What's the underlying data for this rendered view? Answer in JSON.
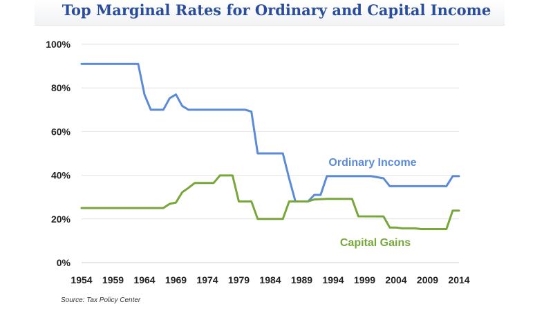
{
  "chart_data": {
    "type": "line",
    "title": "Top Marginal Rates for Ordinary and Capital Income",
    "xlabel": "",
    "ylabel": "",
    "xlim": [
      1954,
      2014
    ],
    "ylim": [
      0,
      100
    ],
    "x_ticks": [
      1954,
      1959,
      1964,
      1969,
      1974,
      1979,
      1984,
      1989,
      1994,
      1999,
      2004,
      2009,
      2014
    ],
    "y_ticks": [
      0,
      20,
      40,
      60,
      80,
      100
    ],
    "y_tick_labels": [
      "0%",
      "20%",
      "40%",
      "60%",
      "80%",
      "100%"
    ],
    "grid": true,
    "series": [
      {
        "name": "Ordinary Income",
        "color": "#5b8bd6",
        "points": [
          [
            1954,
            91
          ],
          [
            1963,
            91
          ],
          [
            1964,
            77
          ],
          [
            1965,
            70
          ],
          [
            1967,
            70
          ],
          [
            1968,
            75.25
          ],
          [
            1969,
            77
          ],
          [
            1970,
            71.75
          ],
          [
            1971,
            70
          ],
          [
            1980,
            70
          ],
          [
            1981,
            69.13
          ],
          [
            1982,
            50
          ],
          [
            1986,
            50
          ],
          [
            1987,
            38.5
          ],
          [
            1988,
            28
          ],
          [
            1990,
            28
          ],
          [
            1991,
            31
          ],
          [
            1992,
            31
          ],
          [
            1993,
            39.6
          ],
          [
            2000,
            39.6
          ],
          [
            2001,
            39.1
          ],
          [
            2002,
            38.6
          ],
          [
            2003,
            35
          ],
          [
            2012,
            35
          ],
          [
            2013,
            39.6
          ],
          [
            2014,
            39.6
          ]
        ]
      },
      {
        "name": "Capital Gains",
        "color": "#77a73a",
        "points": [
          [
            1954,
            25
          ],
          [
            1967,
            25
          ],
          [
            1968,
            26.9
          ],
          [
            1969,
            27.5
          ],
          [
            1970,
            32.2
          ],
          [
            1971,
            34.25
          ],
          [
            1972,
            36.5
          ],
          [
            1975,
            36.5
          ],
          [
            1976,
            39.9
          ],
          [
            1978,
            39.9
          ],
          [
            1979,
            28
          ],
          [
            1981,
            28
          ],
          [
            1982,
            20
          ],
          [
            1986,
            20
          ],
          [
            1987,
            28
          ],
          [
            1990,
            28
          ],
          [
            1991,
            28.93
          ],
          [
            1993,
            29.19
          ],
          [
            1997,
            29.19
          ],
          [
            1998,
            21.19
          ],
          [
            2002,
            21.17
          ],
          [
            2003,
            16.05
          ],
          [
            2004,
            16.05
          ],
          [
            2005,
            15.7
          ],
          [
            2007,
            15.7
          ],
          [
            2008,
            15.35
          ],
          [
            2012,
            15.35
          ],
          [
            2013,
            23.8
          ],
          [
            2014,
            23.8
          ]
        ]
      }
    ],
    "series_labels": [
      "Ordinary Income",
      "Capital Gains"
    ],
    "source": "Source: Tax Policy Center"
  }
}
